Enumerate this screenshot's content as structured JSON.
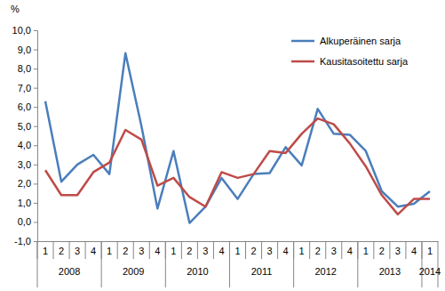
{
  "chart_data": {
    "type": "line",
    "y_label": "%",
    "categories": [
      "1",
      "2",
      "3",
      "4",
      "1",
      "2",
      "3",
      "4",
      "1",
      "2",
      "3",
      "4",
      "1",
      "2",
      "3",
      "4",
      "1",
      "2",
      "3",
      "4",
      "1",
      "2",
      "3",
      "4",
      "1"
    ],
    "groups": [
      {
        "label": "2008",
        "count": 4
      },
      {
        "label": "2009",
        "count": 4
      },
      {
        "label": "2010",
        "count": 4
      },
      {
        "label": "2011",
        "count": 4
      },
      {
        "label": "2012",
        "count": 4
      },
      {
        "label": "2013",
        "count": 4
      },
      {
        "label": "2014",
        "count": 1
      }
    ],
    "series": [
      {
        "name": "Alkuperäinen sarja",
        "color": "#4a7ebb",
        "values": [
          6.3,
          2.1,
          3.0,
          3.5,
          2.5,
          8.8,
          5.0,
          0.7,
          3.7,
          -0.05,
          0.8,
          2.3,
          1.2,
          2.5,
          2.55,
          3.9,
          2.95,
          5.9,
          4.6,
          4.55,
          3.7,
          1.6,
          0.8,
          0.95,
          1.6
        ]
      },
      {
        "name": "Kausitasoitettu sarja",
        "color": "#be4b48",
        "values": [
          2.7,
          1.4,
          1.4,
          2.6,
          3.1,
          4.8,
          4.3,
          1.9,
          2.3,
          1.3,
          0.8,
          2.6,
          2.3,
          2.5,
          3.7,
          3.6,
          4.6,
          5.4,
          5.1,
          4.1,
          2.9,
          1.4,
          0.4,
          1.2,
          1.2
        ]
      }
    ],
    "ylim": [
      -1,
      10
    ],
    "yticks": [
      {
        "value": -1,
        "label": "-1,0"
      },
      {
        "value": 0,
        "label": "0,0"
      },
      {
        "value": 1,
        "label": "1,0"
      },
      {
        "value": 2,
        "label": "2,0"
      },
      {
        "value": 3,
        "label": "3,0"
      },
      {
        "value": 4,
        "label": "4,0"
      },
      {
        "value": 5,
        "label": "5,0"
      },
      {
        "value": 6,
        "label": "6,0"
      },
      {
        "value": 7,
        "label": "7,0"
      },
      {
        "value": 8,
        "label": "8,0"
      },
      {
        "value": 9,
        "label": "9,0"
      },
      {
        "value": 10,
        "label": "10,0"
      }
    ],
    "legend": "upper right",
    "grid": false
  }
}
